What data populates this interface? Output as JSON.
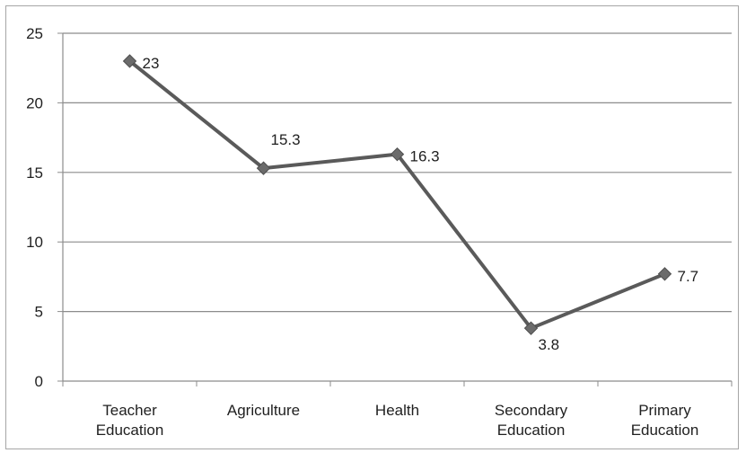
{
  "chart_data": {
    "type": "line",
    "title": "",
    "xlabel": "",
    "ylabel": "",
    "categories": [
      [
        "Teacher",
        "Education"
      ],
      [
        "Agriculture"
      ],
      [
        "Health"
      ],
      [
        "Secondary",
        "Education"
      ],
      [
        "Primary",
        "Education"
      ]
    ],
    "series": [
      {
        "values": [
          23,
          15.3,
          16.3,
          3.8,
          7.7
        ]
      }
    ],
    "data_labels": [
      "23",
      "15.3",
      "16.3",
      "3.8",
      "7.7"
    ],
    "ylim": [
      0,
      25
    ],
    "yticks": [
      0,
      5,
      10,
      15,
      20,
      25
    ],
    "ytick_labels": [
      "0",
      "5",
      "10",
      "15",
      "20",
      "25"
    ],
    "grid": true,
    "legend": "none",
    "colors": {
      "line": "#5a5a5a",
      "marker": "#6b6b6b",
      "grid": "#8c8c8c",
      "text": "#1f1f1f"
    }
  }
}
